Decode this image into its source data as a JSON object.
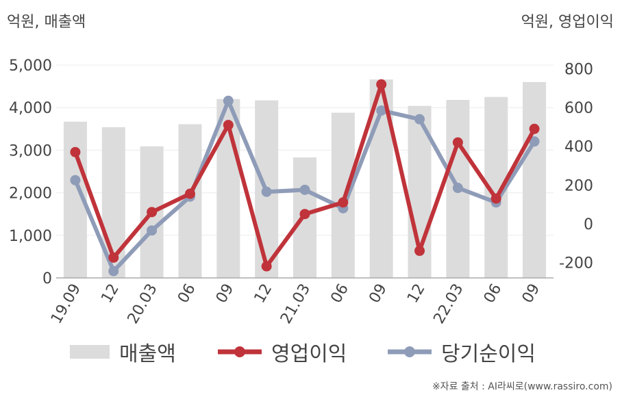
{
  "units": {
    "left": "억원, 매출액",
    "right": "억원, 영업이익"
  },
  "source": "※자료 출처 : AI라씨로(www.rassiro.com)",
  "colors": {
    "revenue": "#dcdcdc",
    "operating_income": "#c0333a",
    "net_income": "#8f9cb8"
  },
  "chart_data": {
    "type": "bar",
    "categories": [
      "19.09",
      "12",
      "20.03",
      "06",
      "09",
      "12",
      "21.03",
      "06",
      "09",
      "12",
      "22.03",
      "06",
      "09"
    ],
    "series": [
      {
        "name": "매출액",
        "type": "bar",
        "axis": "left",
        "values": [
          3670,
          3540,
          3090,
          3610,
          4200,
          4170,
          2830,
          3880,
          4660,
          4040,
          4180,
          4250,
          4600
        ]
      },
      {
        "name": "영업이익",
        "type": "line",
        "axis": "right",
        "values": [
          370,
          -175,
          60,
          155,
          510,
          -220,
          50,
          110,
          720,
          -140,
          420,
          130,
          490
        ]
      },
      {
        "name": "당기순이익",
        "type": "line",
        "axis": "right",
        "values": [
          225,
          -245,
          -35,
          140,
          635,
          165,
          175,
          80,
          585,
          540,
          185,
          110,
          425
        ]
      }
    ],
    "y_left": {
      "min": 0,
      "max": 5000,
      "ticks": [
        0,
        1000,
        2000,
        3000,
        4000,
        5000
      ],
      "tick_labels": [
        "0",
        "1,000",
        "2,000",
        "3,000",
        "4,000",
        "5,000"
      ]
    },
    "y_right": {
      "min": -280,
      "max": 820,
      "ticks": [
        -200,
        0,
        200,
        400,
        600,
        800
      ],
      "tick_labels": [
        "-200",
        "0",
        "200",
        "400",
        "600",
        "800"
      ]
    },
    "grid": true,
    "legend": "bottom"
  }
}
